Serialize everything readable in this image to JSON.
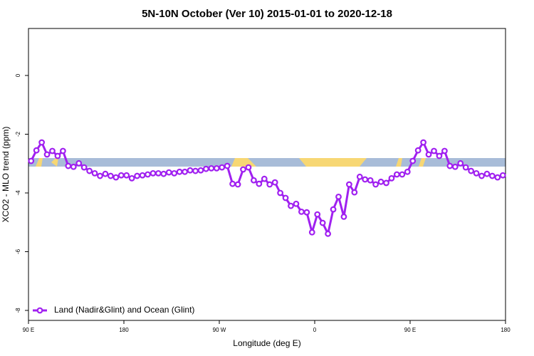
{
  "chart_data": {
    "type": "line",
    "title": "5N-10N October (Ver 10)   2015-01-01 to 2020-12-18",
    "x_label": "Longitude (deg E)",
    "y_label": "XCO2 - MLO trend (ppm)",
    "x": [
      92.5,
      97.5,
      102.5,
      107.5,
      112.5,
      117.5,
      122.5,
      127.5,
      132.5,
      137.5,
      142.5,
      147.5,
      152.5,
      157.5,
      162.5,
      167.5,
      172.5,
      177.5,
      182.5,
      187.5,
      192.5,
      197.5,
      202.5,
      207.5,
      212.5,
      217.5,
      222.5,
      227.5,
      232.5,
      237.5,
      242.5,
      247.5,
      252.5,
      257.5,
      262.5,
      267.5,
      272.5,
      277.5,
      282.5,
      287.5,
      292.5,
      297.5,
      302.5,
      307.5,
      312.5,
      317.5,
      322.5,
      327.5,
      332.5,
      337.5,
      342.5,
      347.5,
      352.5,
      357.5,
      362.5,
      367.5,
      372.5,
      377.5,
      382.5,
      387.5,
      392.5,
      397.5,
      402.5,
      407.5,
      412.5,
      417.5,
      422.5,
      427.5,
      432.5,
      437.5,
      442.5,
      447.5,
      452.5,
      457.5,
      462.5,
      467.5,
      472.5,
      477.5,
      482.5,
      487.5,
      492.5,
      497.5,
      502.5,
      507.5,
      512.5,
      517.5,
      522.5,
      527.5,
      532.5,
      537.5
    ],
    "series": [
      {
        "name": "Land (Nadir&Glint) and Ocean (Glint)",
        "color": "#a020f0",
        "values": [
          -2.91,
          -2.55,
          -2.28,
          -2.69,
          -2.57,
          -2.74,
          -2.57,
          -3.08,
          -3.11,
          -2.99,
          -3.13,
          -3.25,
          -3.33,
          -3.42,
          -3.35,
          -3.42,
          -3.47,
          -3.4,
          -3.4,
          -3.5,
          -3.42,
          -3.4,
          -3.37,
          -3.33,
          -3.33,
          -3.35,
          -3.3,
          -3.33,
          -3.28,
          -3.28,
          -3.23,
          -3.25,
          -3.23,
          -3.18,
          -3.16,
          -3.16,
          -3.13,
          -3.08,
          -3.69,
          -3.71,
          -3.2,
          -3.13,
          -3.57,
          -3.69,
          -3.52,
          -3.71,
          -3.64,
          -4.0,
          -4.17,
          -4.44,
          -4.37,
          -4.64,
          -4.66,
          -5.34,
          -4.73,
          -5.02,
          -5.39,
          -4.56,
          -4.13,
          -4.81,
          -3.71,
          -3.98,
          -3.45,
          -3.54,
          -3.57,
          -3.71,
          -3.62,
          -3.66,
          -3.5,
          -3.37,
          -3.37,
          -3.28,
          -2.91,
          -2.55,
          -2.28,
          -2.69,
          -2.57,
          -2.74,
          -2.57,
          -3.08,
          -3.11,
          -2.99,
          -3.13,
          -3.25,
          -3.33,
          -3.42,
          -3.35,
          -3.42,
          -3.47,
          -3.4
        ]
      }
    ],
    "xlim": [
      90,
      540
    ],
    "ylim": [
      -8.34,
      1.6
    ],
    "xticks": [
      {
        "value": 90,
        "label": "90 E"
      },
      180,
      {
        "value": 270,
        "label": "90 W"
      },
      {
        "value": 360,
        "label": "0"
      },
      {
        "value": 450,
        "label": "90 E"
      },
      {
        "value": 540,
        "label": "180"
      }
    ],
    "yticks": [
      0,
      -2,
      -4,
      -6,
      -8
    ],
    "legend": "bottom-left"
  }
}
